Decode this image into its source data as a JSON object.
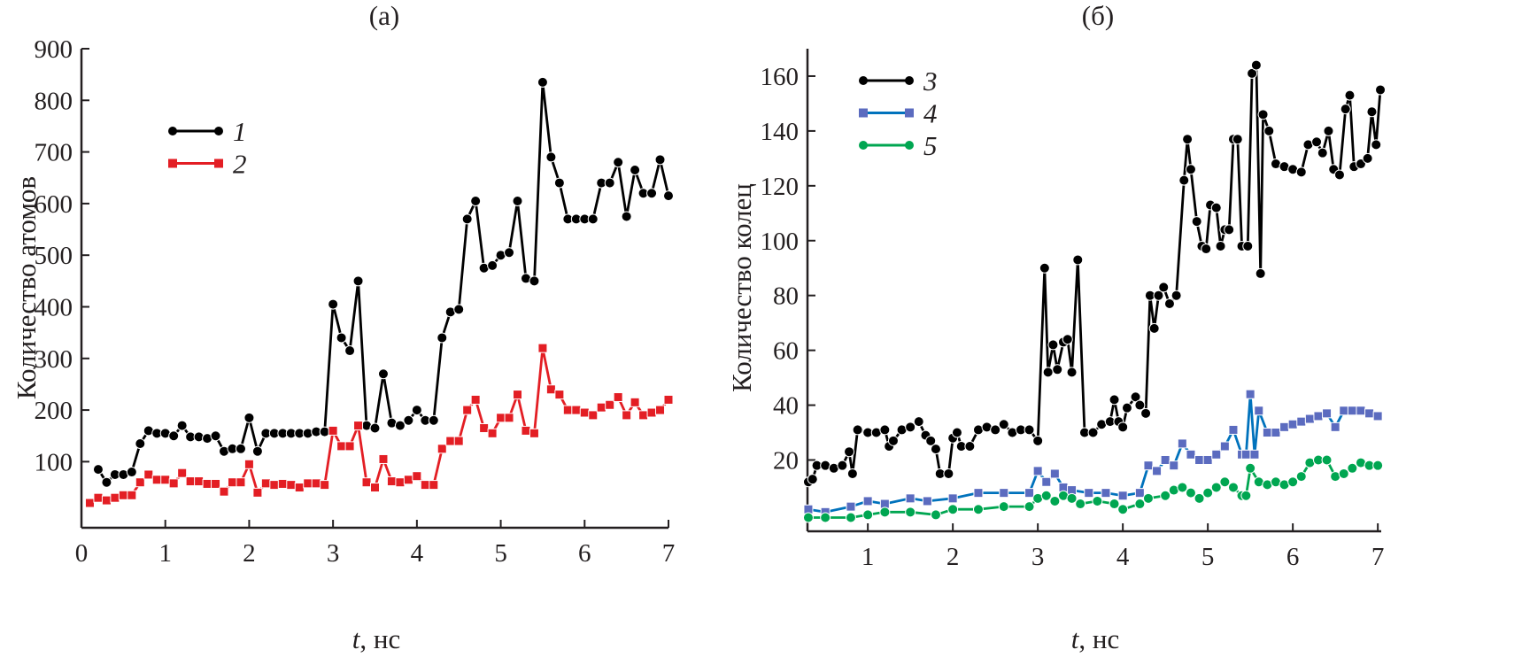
{
  "chart_data": [
    {
      "type": "line",
      "title": "(а)",
      "xlabel_italic": "t",
      "xlabel_rest": ", нс",
      "ylabel": "Количество атомов",
      "xlim": [
        0,
        7
      ],
      "ylim": [
        -28,
        900
      ],
      "xticks": [
        0,
        1,
        2,
        3,
        4,
        5,
        6,
        7
      ],
      "yticks": [
        100,
        200,
        300,
        400,
        500,
        600,
        700,
        800,
        900
      ],
      "legend_position": "top-left",
      "series": [
        {
          "name": "1",
          "color": "#000000",
          "marker": "circle",
          "x": [
            0.2,
            0.3,
            0.4,
            0.5,
            0.6,
            0.7,
            0.8,
            0.9,
            1.0,
            1.1,
            1.2,
            1.3,
            1.4,
            1.5,
            1.6,
            1.7,
            1.8,
            1.9,
            2.0,
            2.1,
            2.2,
            2.3,
            2.4,
            2.5,
            2.6,
            2.7,
            2.8,
            2.9,
            3.0,
            3.1,
            3.2,
            3.3,
            3.4,
            3.5,
            3.6,
            3.7,
            3.8,
            3.9,
            4.0,
            4.1,
            4.2,
            4.3,
            4.4,
            4.5,
            4.6,
            4.7,
            4.8,
            4.9,
            5.0,
            5.1,
            5.2,
            5.3,
            5.4,
            5.5,
            5.6,
            5.7,
            5.8,
            5.9,
            6.0,
            6.1,
            6.2,
            6.3,
            6.4,
            6.5,
            6.6,
            6.7,
            6.8,
            6.9,
            7.0
          ],
          "y": [
            85,
            60,
            75,
            75,
            80,
            135,
            160,
            155,
            155,
            150,
            170,
            148,
            148,
            145,
            150,
            120,
            125,
            125,
            185,
            120,
            155,
            155,
            155,
            155,
            155,
            155,
            158,
            158,
            405,
            340,
            315,
            450,
            170,
            165,
            270,
            175,
            170,
            180,
            200,
            180,
            180,
            340,
            390,
            395,
            570,
            605,
            475,
            480,
            500,
            505,
            605,
            455,
            450,
            835,
            690,
            640,
            570,
            570,
            570,
            570,
            640,
            640,
            680,
            575,
            665,
            620,
            620,
            685,
            615
          ]
        },
        {
          "name": "2",
          "color": "#e31e24",
          "marker": "square",
          "x": [
            0.1,
            0.2,
            0.3,
            0.4,
            0.5,
            0.6,
            0.7,
            0.8,
            0.9,
            1.0,
            1.1,
            1.2,
            1.3,
            1.4,
            1.5,
            1.6,
            1.7,
            1.8,
            1.9,
            2.0,
            2.1,
            2.2,
            2.3,
            2.4,
            2.5,
            2.6,
            2.7,
            2.8,
            2.9,
            3.0,
            3.1,
            3.2,
            3.3,
            3.4,
            3.5,
            3.6,
            3.7,
            3.8,
            3.9,
            4.0,
            4.1,
            4.2,
            4.3,
            4.4,
            4.5,
            4.6,
            4.7,
            4.8,
            4.9,
            5.0,
            5.1,
            5.2,
            5.3,
            5.4,
            5.5,
            5.6,
            5.7,
            5.8,
            5.9,
            6.0,
            6.1,
            6.2,
            6.3,
            6.4,
            6.5,
            6.6,
            6.7,
            6.8,
            6.9,
            7.0
          ],
          "y": [
            20,
            30,
            25,
            30,
            35,
            35,
            60,
            75,
            65,
            65,
            58,
            78,
            62,
            62,
            57,
            57,
            42,
            60,
            60,
            95,
            40,
            58,
            55,
            57,
            55,
            50,
            58,
            58,
            55,
            160,
            130,
            130,
            170,
            60,
            50,
            105,
            62,
            60,
            65,
            72,
            55,
            55,
            125,
            140,
            140,
            200,
            220,
            165,
            155,
            185,
            185,
            230,
            160,
            155,
            320,
            240,
            230,
            200,
            200,
            195,
            190,
            205,
            210,
            225,
            190,
            215,
            190,
            195,
            200,
            220
          ]
        }
      ]
    },
    {
      "type": "line",
      "title": "(б)",
      "xlabel_italic": "t",
      "xlabel_rest": ", нс",
      "ylabel": "Количество колец",
      "xlim": [
        0.29,
        7.04
      ],
      "ylim": [
        -6,
        170
      ],
      "xticks": [
        1,
        2,
        3,
        4,
        5,
        6,
        7
      ],
      "yticks": [
        20,
        40,
        60,
        80,
        100,
        120,
        140,
        160
      ],
      "legend_position": "top-left",
      "series": [
        {
          "name": "3",
          "color": "#000000",
          "marker": "circle",
          "x": [
            0.3,
            0.35,
            0.4,
            0.5,
            0.6,
            0.7,
            0.78,
            0.82,
            0.88,
            1.0,
            1.1,
            1.2,
            1.25,
            1.3,
            1.4,
            1.5,
            1.6,
            1.68,
            1.74,
            1.8,
            1.85,
            1.95,
            2.0,
            2.05,
            2.1,
            2.2,
            2.3,
            2.4,
            2.5,
            2.6,
            2.7,
            2.8,
            2.9,
            3.0,
            3.08,
            3.12,
            3.18,
            3.23,
            3.3,
            3.35,
            3.4,
            3.47,
            3.55,
            3.65,
            3.75,
            3.85,
            3.9,
            3.95,
            4.0,
            4.05,
            4.15,
            4.2,
            4.27,
            4.32,
            4.37,
            4.42,
            4.48,
            4.55,
            4.63,
            4.72,
            4.76,
            4.8,
            4.87,
            4.93,
            4.98,
            5.03,
            5.1,
            5.15,
            5.2,
            5.25,
            5.3,
            5.35,
            5.4,
            5.47,
            5.52,
            5.57,
            5.62,
            5.65,
            5.72,
            5.8,
            5.9,
            6.0,
            6.1,
            6.18,
            6.28,
            6.35,
            6.42,
            6.48,
            6.55,
            6.62,
            6.67,
            6.72,
            6.8,
            6.88,
            6.93,
            6.98,
            7.03
          ],
          "y": [
            12,
            13,
            18,
            18,
            17,
            18,
            23,
            15,
            31,
            30,
            30,
            31,
            25,
            27,
            31,
            32,
            34,
            29,
            27,
            24,
            15,
            15,
            28,
            30,
            25,
            25,
            31,
            32,
            31,
            33,
            30,
            31,
            31,
            27,
            90,
            52,
            62,
            53,
            63,
            64,
            52,
            93,
            30,
            30,
            33,
            34,
            42,
            34,
            32,
            39,
            43,
            40,
            37,
            80,
            68,
            80,
            83,
            77,
            80,
            122,
            137,
            126,
            107,
            98,
            97,
            113,
            112,
            98,
            104,
            104,
            137,
            137,
            98,
            98,
            161,
            164,
            88,
            146,
            140,
            128,
            127,
            126,
            125,
            135,
            136,
            132,
            140,
            126,
            124,
            148,
            153,
            127,
            128,
            130,
            147,
            135,
            155
          ]
        },
        {
          "name": "4",
          "color": "#5b6bbf",
          "line_color": "#0072bc",
          "marker": "square",
          "x": [
            0.3,
            0.5,
            0.8,
            1.0,
            1.2,
            1.5,
            1.7,
            2.0,
            2.3,
            2.6,
            2.9,
            3.0,
            3.1,
            3.2,
            3.3,
            3.4,
            3.6,
            3.8,
            4.0,
            4.2,
            4.3,
            4.4,
            4.5,
            4.6,
            4.7,
            4.8,
            4.9,
            5.0,
            5.1,
            5.2,
            5.3,
            5.4,
            5.45,
            5.5,
            5.55,
            5.6,
            5.7,
            5.8,
            5.9,
            6.0,
            6.1,
            6.2,
            6.3,
            6.4,
            6.5,
            6.6,
            6.7,
            6.8,
            6.9,
            7.0
          ],
          "y": [
            2,
            1,
            3,
            5,
            4,
            6,
            5,
            6,
            8,
            8,
            8,
            16,
            12,
            15,
            10,
            9,
            8,
            8,
            7,
            8,
            18,
            16,
            20,
            18,
            26,
            22,
            20,
            20,
            22,
            25,
            31,
            22,
            22,
            44,
            22,
            38,
            30,
            30,
            32,
            33,
            34,
            35,
            36,
            37,
            32,
            38,
            38,
            38,
            37,
            36
          ]
        },
        {
          "name": "5",
          "color": "#00a651",
          "marker": "circle",
          "x": [
            0.3,
            0.5,
            0.8,
            1.0,
            1.2,
            1.5,
            1.8,
            2.0,
            2.3,
            2.6,
            2.9,
            3.0,
            3.1,
            3.2,
            3.3,
            3.4,
            3.5,
            3.7,
            3.9,
            4.0,
            4.2,
            4.3,
            4.5,
            4.6,
            4.7,
            4.8,
            4.9,
            5.0,
            5.1,
            5.2,
            5.3,
            5.4,
            5.45,
            5.5,
            5.6,
            5.7,
            5.8,
            5.9,
            6.0,
            6.1,
            6.2,
            6.3,
            6.4,
            6.5,
            6.6,
            6.7,
            6.8,
            6.9,
            7.0
          ],
          "y": [
            -1,
            -1,
            -1,
            0,
            1,
            1,
            0,
            2,
            2,
            3,
            3,
            6,
            7,
            5,
            7,
            6,
            4,
            5,
            4,
            2,
            4,
            6,
            7,
            9,
            10,
            8,
            6,
            8,
            10,
            12,
            10,
            7,
            7,
            17,
            12,
            11,
            12,
            11,
            12,
            14,
            19,
            20,
            20,
            14,
            15,
            17,
            19,
            18,
            18
          ]
        }
      ]
    }
  ]
}
